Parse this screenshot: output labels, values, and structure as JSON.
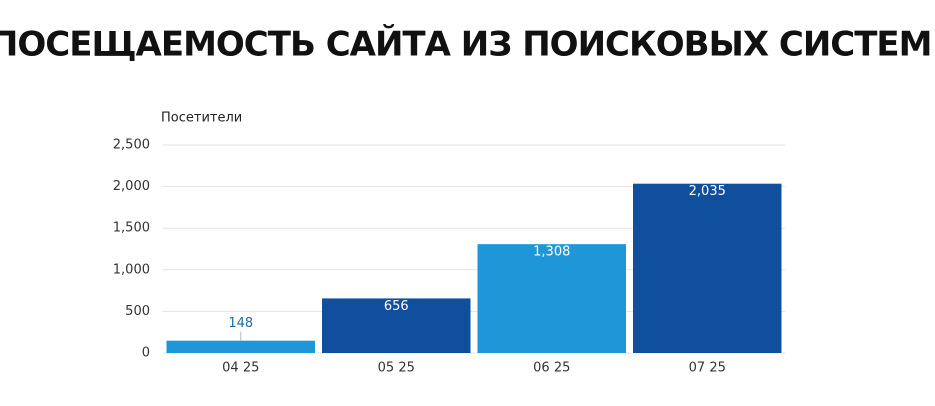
{
  "chart_data": {
    "type": "bar",
    "title": "ПОСЕЩАЕМОСТЬ САЙТА ИЗ ПОИСКОВЫХ СИСТЕМ:",
    "y_label": "Посетители",
    "categories": [
      "04 25",
      "05 25",
      "06 25",
      "07 25"
    ],
    "values": [
      148,
      656,
      1308,
      2035
    ],
    "value_labels": [
      "148",
      "656",
      "1,308",
      "2,035"
    ],
    "colors": [
      "#1e96d8",
      "#0f4f9e",
      "#1e96d8",
      "#0f4f9e"
    ],
    "ylim": [
      0,
      2500
    ],
    "yticks": [
      0,
      500,
      {
        "value": 1000,
        "label": "1,000"
      },
      {
        "value": 1500,
        "label": "1,500"
      },
      {
        "value": 2000,
        "label": "2,000"
      },
      {
        "value": 2500,
        "label": "2,500"
      }
    ],
    "grid": true
  }
}
